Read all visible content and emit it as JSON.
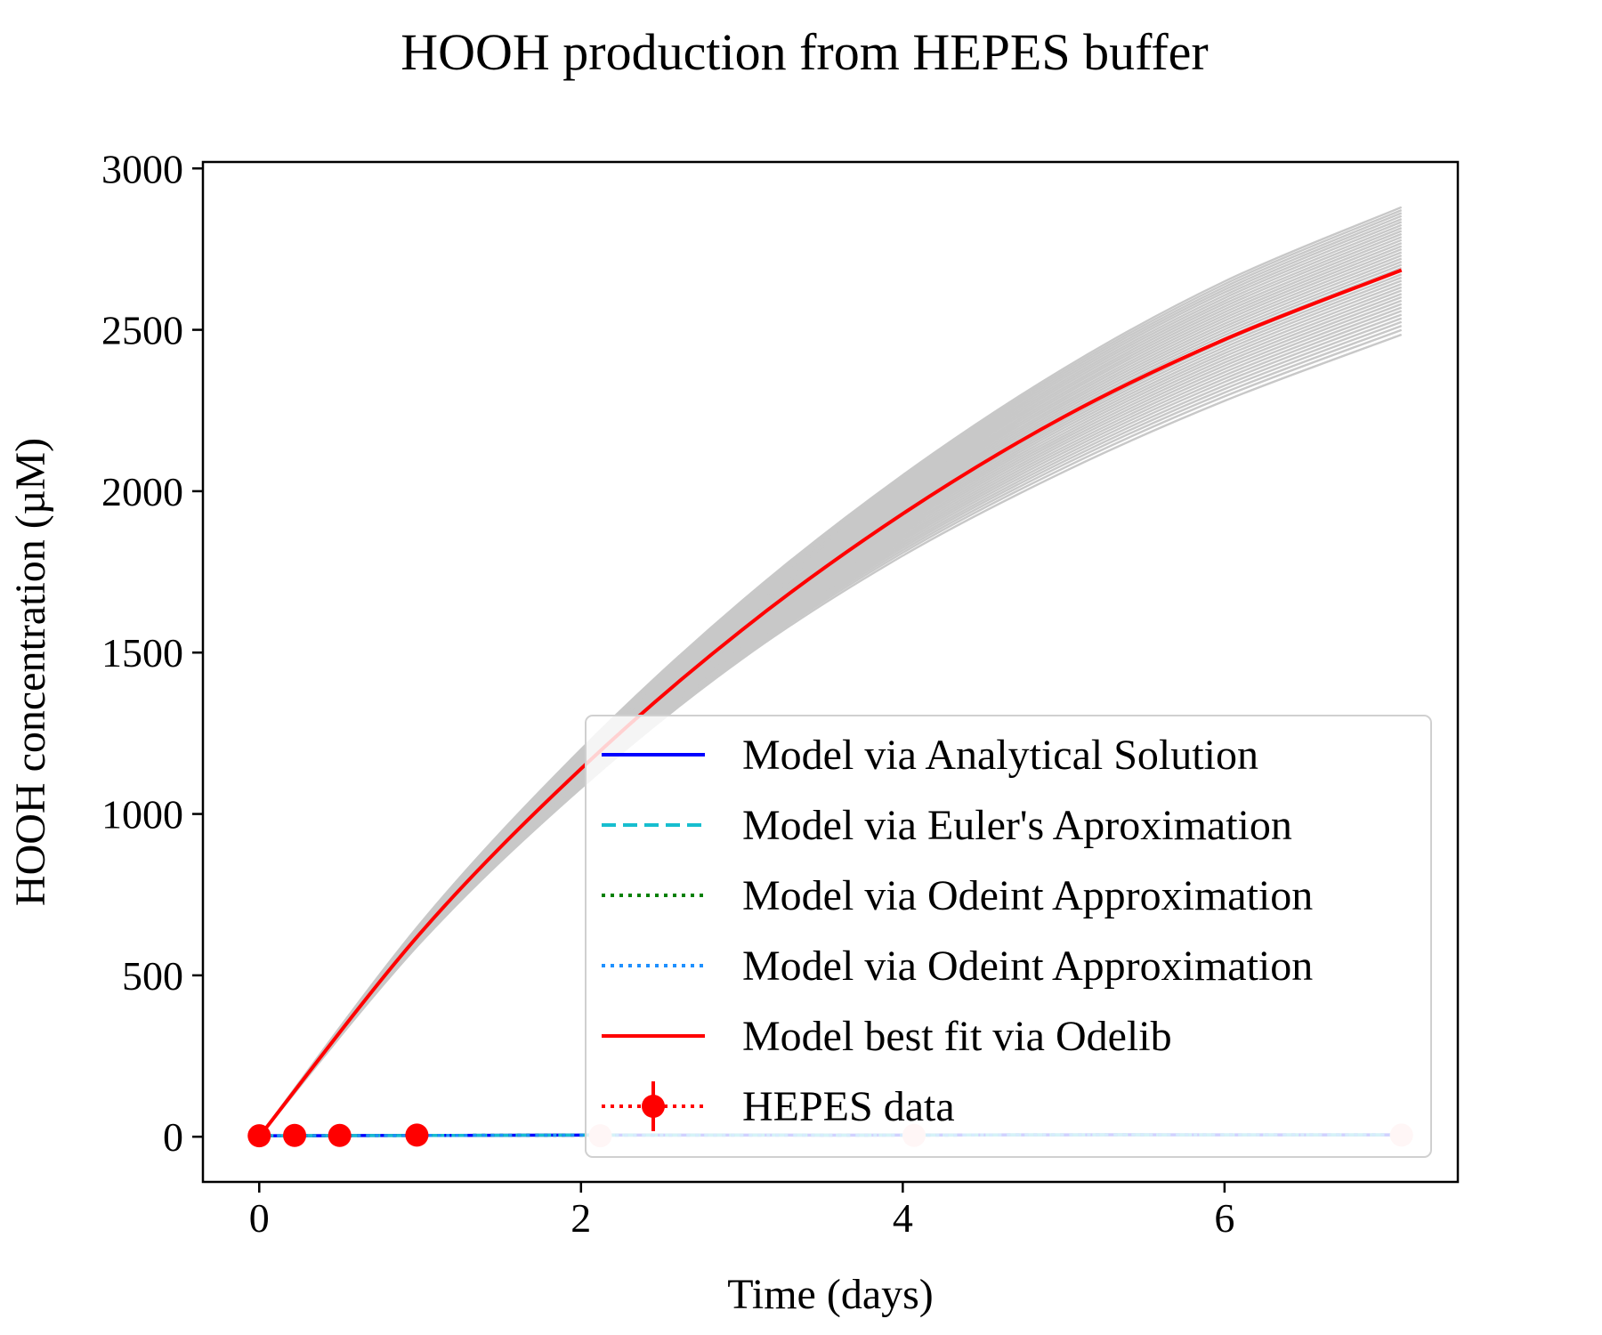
{
  "chart_data": {
    "type": "line",
    "title": "HOOH production from HEPES buffer",
    "xlabel": "Time (days)",
    "ylabel": "HOOH concentration (µM)",
    "xlim": [
      -0.35,
      7.45
    ],
    "ylim": [
      -140,
      3020
    ],
    "xticks": [
      0,
      2,
      4,
      6
    ],
    "yticks": [
      0,
      500,
      1000,
      1500,
      2000,
      2500,
      3000
    ],
    "grid": false,
    "legend_position": "lower right",
    "legend": [
      {
        "label": "Model via Analytical Solution",
        "color": "#0000ff",
        "style": "solid"
      },
      {
        "label": "Model via Euler's Aproximation",
        "color": "#17becf",
        "style": "dashed"
      },
      {
        "label": "Model via Odeint Approximation",
        "color": "#008000",
        "style": "dotted"
      },
      {
        "label": "Model via Odeint Approximation",
        "color": "#1e90ff",
        "style": "dotted"
      },
      {
        "label": "Model best fit via Odelib",
        "color": "#ff0000",
        "style": "solid"
      },
      {
        "label": "HEPES data",
        "color": "#ff0000",
        "style": "dotted-marker"
      }
    ],
    "series": [
      {
        "name": "Model via Analytical Solution",
        "color": "#0000ff",
        "x": [
          0,
          1,
          2,
          3,
          4,
          5,
          6,
          7.1
        ],
        "y": [
          3,
          4,
          5,
          5,
          5,
          6,
          6,
          6
        ]
      },
      {
        "name": "Model via Euler's Aproximation",
        "color": "#17becf",
        "x": [
          0,
          1,
          2,
          3,
          4,
          5,
          6,
          7.1
        ],
        "y": [
          3,
          4,
          5,
          5,
          5,
          6,
          6,
          6
        ]
      },
      {
        "name": "Model via Odeint Approximation",
        "color": "#008000",
        "x": [
          0,
          1,
          2,
          3,
          4,
          5,
          6,
          7.1
        ],
        "y": [
          3,
          4,
          5,
          5,
          5,
          6,
          6,
          6
        ]
      },
      {
        "name": "Model via Odeint Approximation",
        "color": "#1e90ff",
        "x": [
          0,
          1,
          2,
          3,
          4,
          5,
          6,
          7.1
        ],
        "y": [
          3,
          4,
          5,
          5,
          5,
          6,
          6,
          6
        ]
      },
      {
        "name": "Model best fit via Odelib",
        "color": "#ff0000",
        "x": [
          0,
          1,
          2,
          3,
          4,
          5,
          6,
          7.1
        ],
        "y": [
          0,
          630,
          1140,
          1570,
          1930,
          2230,
          2470,
          2685
        ]
      },
      {
        "name": "HEPES data",
        "color": "#ff0000",
        "x": [
          0,
          0.22,
          0.5,
          0.98
        ],
        "y": [
          3,
          4,
          4,
          5
        ]
      },
      {
        "name": "HEPES data (faded)",
        "color": "#ffcccc",
        "x": [
          2.12,
          4.07,
          7.1
        ],
        "y": [
          3,
          4,
          5
        ]
      }
    ],
    "ensemble_band": {
      "color": "#c8c8c8",
      "count": 40,
      "x": [
        0,
        1,
        2,
        3,
        4,
        5,
        6,
        7.1
      ],
      "y_low": [
        0,
        600,
        1080,
        1480,
        1800,
        2060,
        2280,
        2485
      ],
      "y_high": [
        0,
        660,
        1200,
        1660,
        2050,
        2380,
        2650,
        2880
      ]
    }
  }
}
